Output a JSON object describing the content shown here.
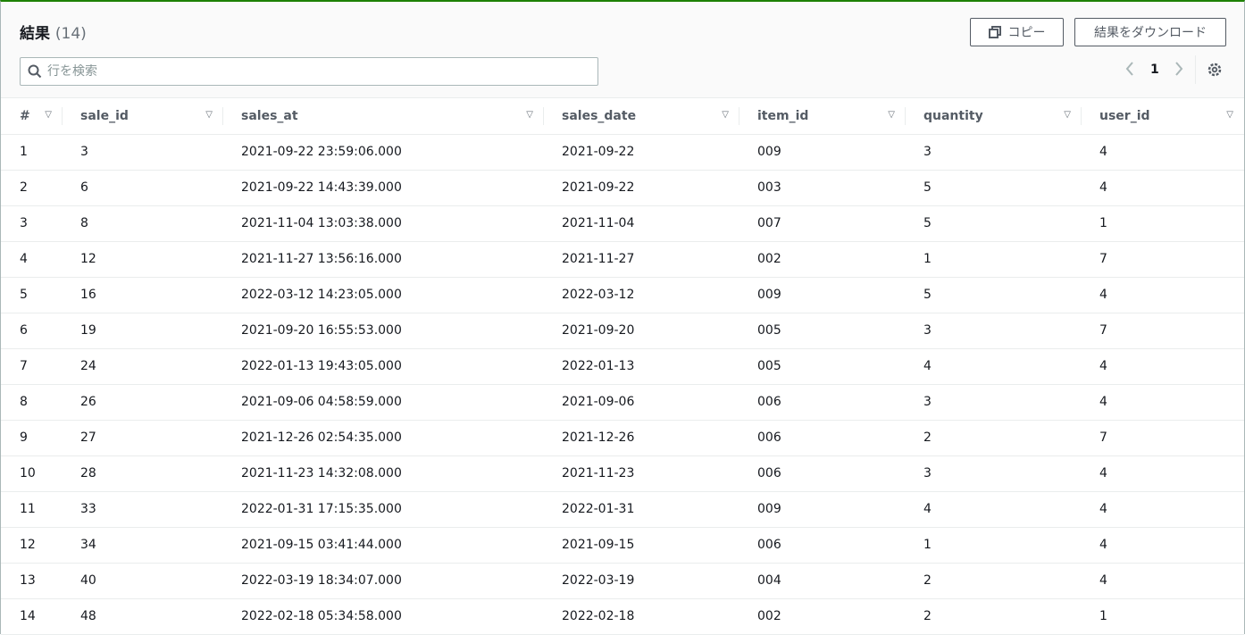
{
  "header": {
    "title": "結果",
    "count": "(14)",
    "copy_label": "コピー",
    "download_label": "結果をダウンロード",
    "search_placeholder": "行を検索",
    "page": "1"
  },
  "colors": {
    "accent": "#1d8102"
  },
  "table": {
    "columns": [
      "#",
      "sale_id",
      "sales_at",
      "sales_date",
      "item_id",
      "quantity",
      "user_id"
    ],
    "rows": [
      [
        "1",
        "3",
        "2021-09-22 23:59:06.000",
        "2021-09-22",
        "009",
        "3",
        "4"
      ],
      [
        "2",
        "6",
        "2021-09-22 14:43:39.000",
        "2021-09-22",
        "003",
        "5",
        "4"
      ],
      [
        "3",
        "8",
        "2021-11-04 13:03:38.000",
        "2021-11-04",
        "007",
        "5",
        "1"
      ],
      [
        "4",
        "12",
        "2021-11-27 13:56:16.000",
        "2021-11-27",
        "002",
        "1",
        "7"
      ],
      [
        "5",
        "16",
        "2022-03-12 14:23:05.000",
        "2022-03-12",
        "009",
        "5",
        "4"
      ],
      [
        "6",
        "19",
        "2021-09-20 16:55:53.000",
        "2021-09-20",
        "005",
        "3",
        "7"
      ],
      [
        "7",
        "24",
        "2022-01-13 19:43:05.000",
        "2022-01-13",
        "005",
        "4",
        "4"
      ],
      [
        "8",
        "26",
        "2021-09-06 04:58:59.000",
        "2021-09-06",
        "006",
        "3",
        "4"
      ],
      [
        "9",
        "27",
        "2021-12-26 02:54:35.000",
        "2021-12-26",
        "006",
        "2",
        "7"
      ],
      [
        "10",
        "28",
        "2021-11-23 14:32:08.000",
        "2021-11-23",
        "006",
        "3",
        "4"
      ],
      [
        "11",
        "33",
        "2022-01-31 17:15:35.000",
        "2022-01-31",
        "009",
        "4",
        "4"
      ],
      [
        "12",
        "34",
        "2021-09-15 03:41:44.000",
        "2021-09-15",
        "006",
        "1",
        "4"
      ],
      [
        "13",
        "40",
        "2022-03-19 18:34:07.000",
        "2022-03-19",
        "004",
        "2",
        "4"
      ],
      [
        "14",
        "48",
        "2022-02-18 05:34:58.000",
        "2022-02-18",
        "002",
        "2",
        "1"
      ]
    ]
  }
}
